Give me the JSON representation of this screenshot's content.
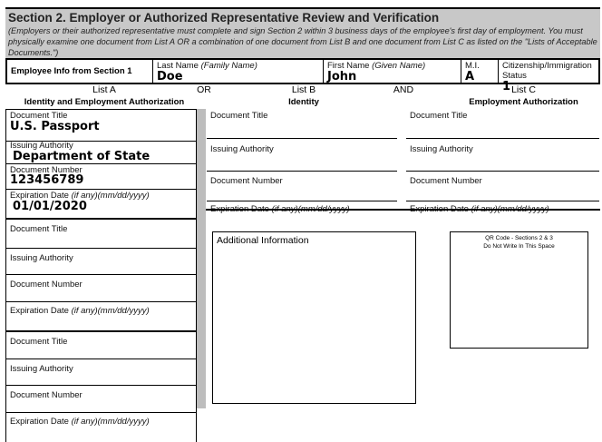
{
  "header": {
    "title": "Section 2. Employer or Authorized Representative Review and Verification",
    "instructions": "(Employers or their authorized representative must complete and sign Section 2 within 3 business days of the employee's first day of employment. You must physically examine one document from List A OR a combination of one document from List B and one document from List C as listed on the \"Lists of Acceptable Documents.\")"
  },
  "employee": {
    "section_label": "Employee Info from Section 1",
    "last_name_label": "Last Name",
    "last_name_hint": "(Family Name)",
    "last_name": "Doe",
    "first_name_label": "First Name",
    "first_name_hint": "(Given Name)",
    "first_name": "John",
    "mi_label": "M.I.",
    "mi": "A",
    "status_label": "Citizenship/Immigration Status",
    "status": "1"
  },
  "lists": {
    "a_title": "List A",
    "a_sub": "Identity and Employment Authorization",
    "or": "OR",
    "b_title": "List B",
    "b_sub": "Identity",
    "and": "AND",
    "c_title": "List C",
    "c_sub": "Employment Authorization"
  },
  "labels": {
    "doc_title": "Document Title",
    "issuing": "Issuing Authority",
    "doc_number": "Document Number",
    "exp": "Expiration Date ",
    "exp_hint": "(if any)(mm/dd/yyyy)"
  },
  "list_a_doc1": {
    "title": "U.S. Passport",
    "issuing": "Department of State",
    "number": "123456789",
    "expiration": "01/01/2020"
  },
  "additional_info": "Additional Information",
  "qr": {
    "line1": "QR Code - Sections 2 & 3",
    "line2": "Do Not Write In This Space"
  }
}
